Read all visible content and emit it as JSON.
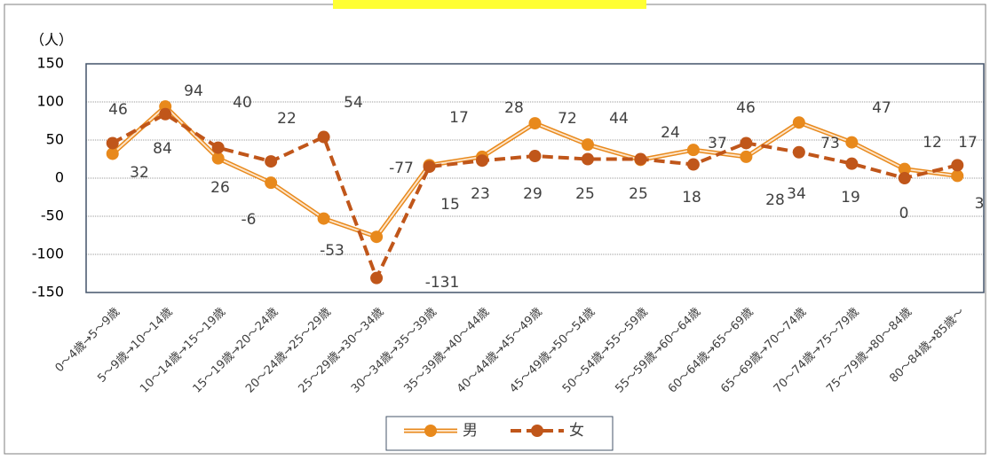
{
  "chart_data": {
    "type": "line",
    "y_label": "（人）",
    "categories": [
      "0〜4歳→5〜9歳",
      "5〜9歳→10〜14歳",
      "10〜14歳→15〜19歳",
      "15〜19歳→20〜24歳",
      "20〜24歳→25〜29歳",
      "25〜29歳→30〜34歳",
      "30〜34歳→35〜39歳",
      "35〜39歳→40〜44歳",
      "40〜44歳→45〜49歳",
      "45〜49歳→50〜54歳",
      "50〜54歳→55〜59歳",
      "55〜59歳→60〜64歳",
      "60〜64歳→65〜69歳",
      "65〜69歳→70〜74歳",
      "70〜74歳→75〜79歳",
      "75〜79歳→80〜84歳",
      "80〜84歳→85歳〜"
    ],
    "series": [
      {
        "name": "男",
        "color": "#e8891c",
        "values": [
          32,
          94,
          26,
          -6,
          -53,
          -77,
          17,
          28,
          72,
          44,
          24,
          37,
          28,
          73,
          47,
          12,
          3
        ]
      },
      {
        "name": "女",
        "color": "#c0561a",
        "values": [
          46,
          84,
          40,
          22,
          54,
          -131,
          15,
          23,
          29,
          25,
          25,
          18,
          46,
          34,
          19,
          0,
          17
        ]
      }
    ],
    "ylim": [
      -150,
      150
    ],
    "yticks": [
      -150,
      -100,
      -50,
      0,
      50,
      100,
      150
    ],
    "grid": true
  }
}
